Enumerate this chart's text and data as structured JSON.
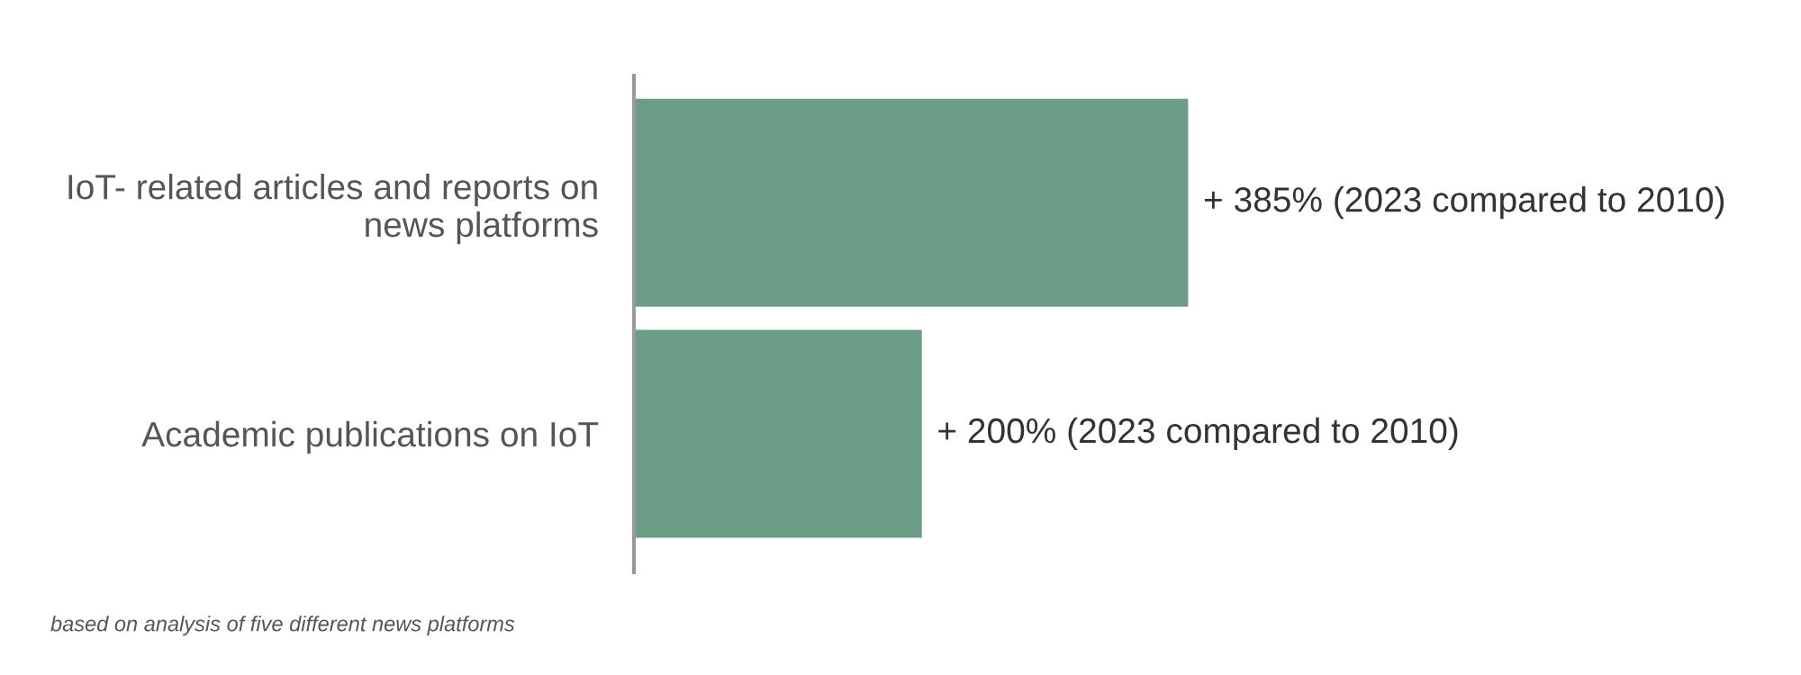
{
  "chart_data": {
    "type": "bar",
    "orientation": "horizontal",
    "categories": [
      "IoT- related articles and reports on\nnews platforms",
      "Academic publications on IoT"
    ],
    "values": [
      385,
      200
    ],
    "color": "#6a9c86",
    "value_labels": [
      "+ 385% (2023 compared to 2010)",
      "+ 200% (2023 compared to 2010)"
    ],
    "annotations": [
      "based on analysis of five different news platforms"
    ],
    "grid": false,
    "legend": false
  }
}
